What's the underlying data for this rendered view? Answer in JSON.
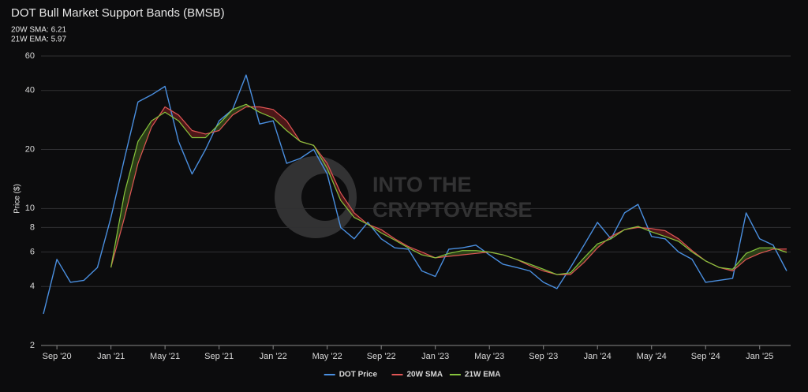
{
  "chart_data": {
    "type": "line",
    "title": "DOT Bull Market Support Bands (BMSB)",
    "subtitle": [
      "20W SMA: 6.21",
      "21W EMA: 5.97"
    ],
    "watermark": [
      "INTO THE",
      "CRYPTOVERSE"
    ],
    "y_label": "Price ($)",
    "log_scale": true,
    "grid": true,
    "legend": "bottom",
    "ylim": [
      2,
      60
    ],
    "yticks": [
      2,
      4,
      6,
      8,
      10,
      20,
      40,
      60
    ],
    "xlim": [
      "2020-08",
      "2025-03"
    ],
    "xticks": [
      {
        "value": "2020-09",
        "label": "Sep '20"
      },
      {
        "value": "2021-01",
        "label": "Jan '21"
      },
      {
        "value": "2021-05",
        "label": "May '21"
      },
      {
        "value": "2021-09",
        "label": "Sep '21"
      },
      {
        "value": "2022-01",
        "label": "Jan '22"
      },
      {
        "value": "2022-05",
        "label": "May '22"
      },
      {
        "value": "2022-09",
        "label": "Sep '22"
      },
      {
        "value": "2023-01",
        "label": "Jan '23"
      },
      {
        "value": "2023-05",
        "label": "May '23"
      },
      {
        "value": "2023-09",
        "label": "Sep '23"
      },
      {
        "value": "2024-01",
        "label": "Jan '24"
      },
      {
        "value": "2024-05",
        "label": "May '24"
      },
      {
        "value": "2024-09",
        "label": "Sep '24"
      },
      {
        "value": "2025-01",
        "label": "Jan '25"
      }
    ],
    "x": [
      "2020-08",
      "2020-09",
      "2020-10",
      "2020-11",
      "2020-12",
      "2021-01",
      "2021-02",
      "2021-03",
      "2021-04",
      "2021-05",
      "2021-06",
      "2021-07",
      "2021-08",
      "2021-09",
      "2021-10",
      "2021-11",
      "2021-12",
      "2022-01",
      "2022-02",
      "2022-03",
      "2022-04",
      "2022-05",
      "2022-06",
      "2022-07",
      "2022-08",
      "2022-09",
      "2022-10",
      "2022-11",
      "2022-12",
      "2023-01",
      "2023-02",
      "2023-03",
      "2023-04",
      "2023-05",
      "2023-06",
      "2023-07",
      "2023-08",
      "2023-09",
      "2023-10",
      "2023-11",
      "2023-12",
      "2024-01",
      "2024-02",
      "2024-03",
      "2024-04",
      "2024-05",
      "2024-06",
      "2024-07",
      "2024-08",
      "2024-09",
      "2024-10",
      "2024-11",
      "2024-12",
      "2025-01",
      "2025-02",
      "2025-03"
    ],
    "series": [
      {
        "name": "DOT Price",
        "color": "#4a8fe0",
        "values": [
          2.9,
          5.5,
          4.2,
          4.3,
          5.0,
          9.0,
          18,
          35,
          38,
          42,
          22,
          15,
          20,
          28,
          32,
          48,
          27,
          28,
          17,
          18,
          20,
          15,
          8,
          7,
          8.5,
          7,
          6.3,
          6.2,
          4.8,
          4.5,
          6.2,
          6.3,
          6.5,
          5.8,
          5.2,
          5.0,
          4.8,
          4.2,
          3.9,
          5.0,
          6.5,
          8.5,
          7.0,
          9.5,
          10.5,
          7.2,
          7.0,
          6.0,
          5.5,
          4.2,
          4.3,
          4.4,
          9.5,
          7.0,
          6.5,
          4.8
        ]
      },
      {
        "name": "20W SMA",
        "color": "#e05555",
        "values": [
          null,
          null,
          null,
          null,
          null,
          5.0,
          9,
          17,
          26,
          33,
          30,
          25,
          24,
          25,
          30,
          33,
          33,
          32,
          28,
          22,
          21,
          17,
          12,
          9.5,
          8.3,
          7.8,
          7,
          6.4,
          6.0,
          5.6,
          5.7,
          5.8,
          5.9,
          6.0,
          5.8,
          5.5,
          5.1,
          4.8,
          4.6,
          4.6,
          5.3,
          6.3,
          7.2,
          7.8,
          8.0,
          7.9,
          7.7,
          7.0,
          6.1,
          5.4,
          5.0,
          4.8,
          5.5,
          5.9,
          6.2,
          6.21
        ]
      },
      {
        "name": "21W EMA",
        "color": "#86c43c",
        "values": [
          null,
          null,
          null,
          null,
          null,
          5.0,
          12,
          22,
          28,
          31,
          28,
          23,
          23,
          27,
          32,
          34,
          31,
          29,
          25,
          22,
          21,
          16,
          11,
          9,
          8.3,
          7.5,
          6.9,
          6.3,
          5.8,
          5.6,
          5.9,
          6.1,
          6.1,
          6.0,
          5.8,
          5.5,
          5.2,
          4.9,
          4.6,
          4.7,
          5.6,
          6.6,
          7.0,
          7.8,
          8.1,
          7.6,
          7.2,
          6.8,
          6.0,
          5.4,
          5.0,
          4.9,
          5.9,
          6.3,
          6.3,
          5.97
        ]
      }
    ]
  }
}
